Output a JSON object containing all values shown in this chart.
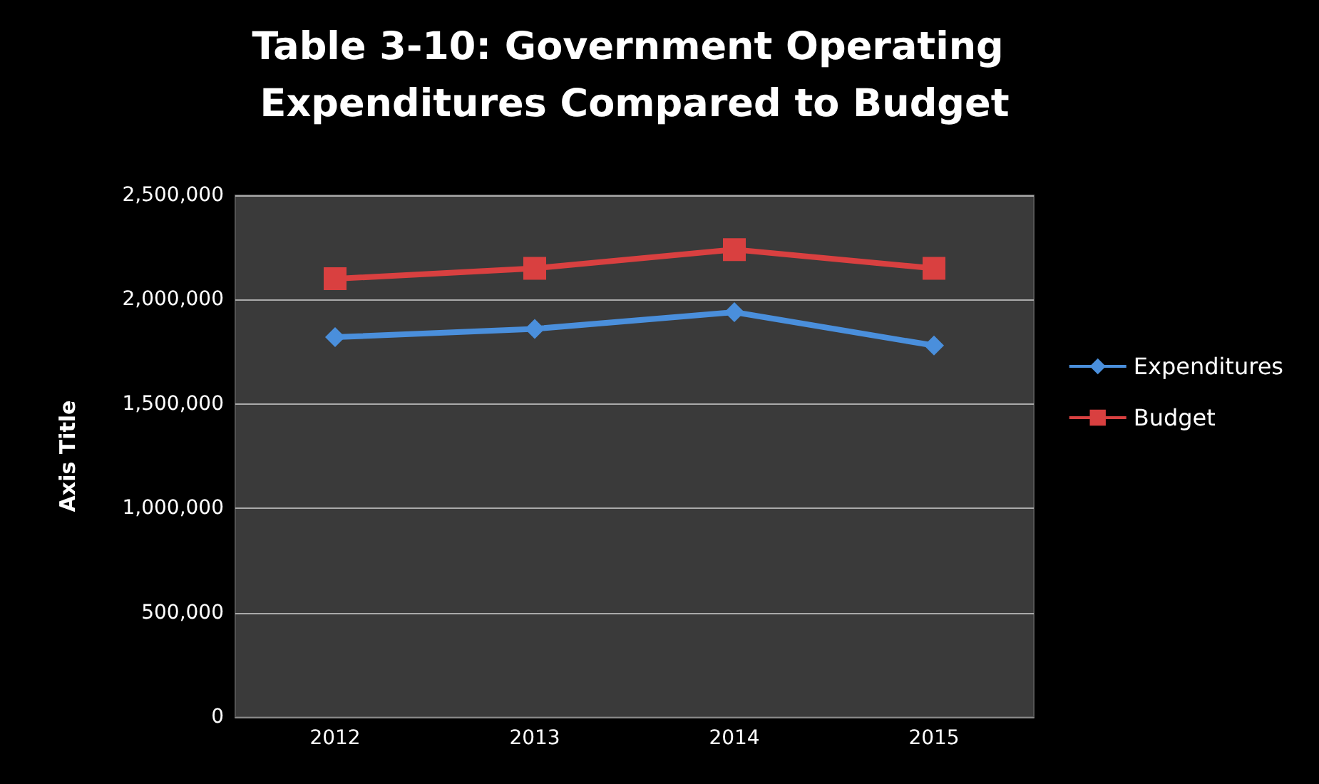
{
  "chart_data": {
    "type": "line",
    "title": "Table 3-10: Government Operating Expenditures Compared to Budget",
    "ylabel": "Axis Title",
    "categories": [
      "2012",
      "2013",
      "2014",
      "2015"
    ],
    "series": [
      {
        "name": "Expenditures",
        "color": "#4a8fdc",
        "marker": "diamond",
        "values": [
          1820000,
          1860000,
          1940000,
          1780000
        ]
      },
      {
        "name": "Budget",
        "color": "#d94040",
        "marker": "square",
        "values": [
          2100000,
          2150000,
          2240000,
          2150000
        ]
      }
    ],
    "ylim": [
      0,
      2500000
    ],
    "yticks": [
      0,
      {
        "value": 500000,
        "label": "500,000"
      },
      {
        "value": 1000000,
        "label": "1,000,000"
      },
      {
        "value": 1500000,
        "label": "1,500,000"
      },
      {
        "value": 2000000,
        "label": "2,000,000"
      },
      {
        "value": 2500000,
        "label": "2,500,000"
      }
    ],
    "grid": "y",
    "legend": "right"
  }
}
